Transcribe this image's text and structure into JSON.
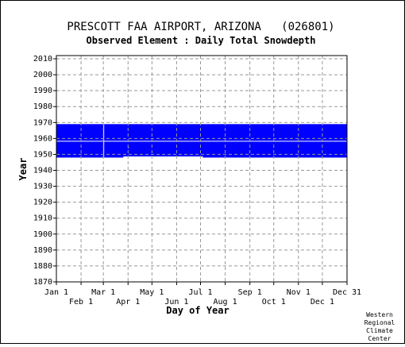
{
  "chart_data": {
    "type": "heatmap",
    "title": "PRESCOTT FAA AIRPORT, ARIZONA   (026801)",
    "subtitle": "Observed Element : Daily Total Snowdepth",
    "xlabel": "Day of Year",
    "ylabel": "Year",
    "x_ticks_top_row": [
      "Jan 1",
      "Mar 1",
      "May 1",
      "Jul 1",
      "Sep 1",
      "Nov 1",
      "Dec 31"
    ],
    "x_ticks_bottom_row": [
      "Feb 1",
      "Apr 1",
      "Jun 1",
      "Aug 1",
      "Oct 1",
      "Dec 1"
    ],
    "x_tick_days": [
      1,
      32,
      60,
      91,
      121,
      152,
      182,
      213,
      244,
      274,
      305,
      335,
      366
    ],
    "y_ticks": [
      "1870",
      "1880",
      "1890",
      "1900",
      "1910",
      "1920",
      "1930",
      "1940",
      "1950",
      "1960",
      "1970",
      "1980",
      "1990",
      "2000",
      "2010"
    ],
    "xlim": [
      1,
      366
    ],
    "ylim": [
      1870,
      2012
    ],
    "grid": true,
    "data_color": "#0000ff",
    "records": [
      {
        "start_year": 1948,
        "end_year": 1969,
        "start_day": 1,
        "end_day": 366,
        "label": "daily snowdepth observations"
      }
    ],
    "missing_marks": [
      {
        "year_start": 1958,
        "year_end": 1958.5,
        "day_start": 1,
        "day_end": 366
      },
      {
        "year_start": 1948,
        "year_end": 1969,
        "day_start": 60,
        "day_end": 61
      },
      {
        "year_start": 1948,
        "year_end": 1948.7,
        "day_start": 85,
        "day_end": 185
      },
      {
        "year_start": 1954,
        "year_end": 1954.6,
        "day_start": 91,
        "day_end": 92
      }
    ]
  },
  "credit": [
    "Western",
    "Regional",
    "Climate",
    "Center"
  ]
}
